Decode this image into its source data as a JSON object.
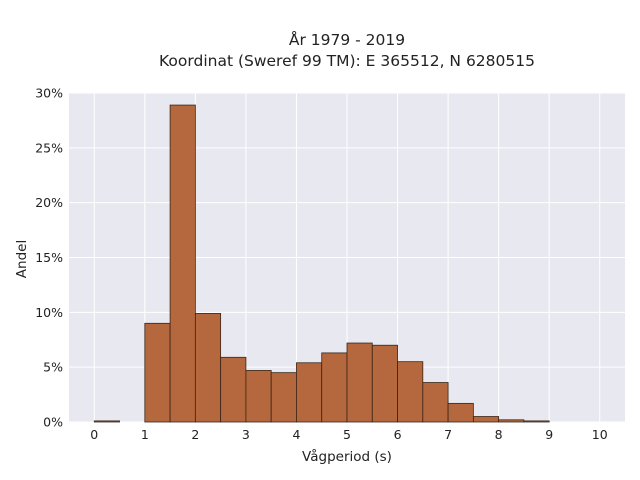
{
  "chart_data": {
    "type": "bar",
    "title": "År 1979 - 2019",
    "subtitle": "Koordinat (Sweref 99 TM): E 365512, N 6280515",
    "xlabel": "Vågperiod (s)",
    "ylabel": "Andel",
    "xlim": [
      -0.5,
      10.5
    ],
    "ylim": [
      0,
      30
    ],
    "x_ticks": [
      0,
      1,
      2,
      3,
      4,
      5,
      6,
      7,
      8,
      9,
      10
    ],
    "y_ticks": [
      0,
      5,
      10,
      15,
      20,
      25,
      30
    ],
    "y_tick_suffix": "%",
    "bin_width": 0.5,
    "bin_starts": [
      0,
      0.5,
      1,
      1.5,
      2,
      2.5,
      3,
      3.5,
      4,
      4.5,
      5,
      5.5,
      6,
      6.5,
      7,
      7.5,
      8,
      8.5,
      9,
      9.5
    ],
    "values": [
      0.1,
      0,
      9.0,
      28.9,
      9.9,
      5.9,
      4.7,
      4.5,
      5.4,
      6.3,
      7.2,
      7.0,
      5.5,
      3.6,
      1.7,
      0.5,
      0.2,
      0.1,
      0,
      0
    ],
    "grid": true,
    "colors": {
      "bar_fill": "#b5683d",
      "bar_edge": "#3a2516",
      "plot_background": "#e8e8f0",
      "grid": "#ffffff"
    }
  }
}
